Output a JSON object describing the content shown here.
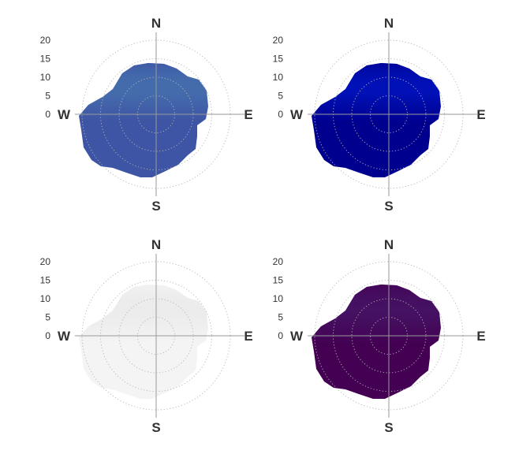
{
  "chart_data": [
    {
      "type": "heatmap",
      "projection": "polar",
      "palette": "spectral",
      "colors": [
        "#3e54a4",
        "#4f97bb",
        "#9dd4a6",
        "#f8f7b9",
        "#fdbf6f",
        "#f4724a",
        "#cf3a4b",
        "#8b0a4a"
      ],
      "radial_ticks": [
        0,
        5,
        10,
        15,
        20
      ],
      "rmax": 24,
      "compass_labels": [
        "N",
        "E",
        "S",
        "W"
      ],
      "grid": true
    },
    {
      "type": "heatmap",
      "projection": "polar",
      "palette": "jet",
      "colors": [
        "#00008f",
        "#0030ff",
        "#00b4ff",
        "#40ffbf",
        "#c0ff40",
        "#ffc000",
        "#ff3000",
        "#9a0000"
      ],
      "radial_ticks": [
        0,
        5,
        10,
        15,
        20
      ],
      "rmax": 24,
      "compass_labels": [
        "N",
        "E",
        "S",
        "W"
      ],
      "grid": true
    },
    {
      "type": "heatmap",
      "projection": "polar",
      "palette": "greyscale",
      "colors": [
        "#f4f4f4",
        "#dcdcdc",
        "#bdbdbd",
        "#969696",
        "#6e6e6e",
        "#4a4a4a",
        "#2a2a2a",
        "#141414"
      ],
      "radial_ticks": [
        0,
        5,
        10,
        15,
        20
      ],
      "rmax": 24,
      "compass_labels": [
        "N",
        "E",
        "S",
        "W"
      ],
      "grid": true
    },
    {
      "type": "heatmap",
      "projection": "polar",
      "palette": "viridis",
      "colors": [
        "#440154",
        "#472d7b",
        "#3b528b",
        "#2c728e",
        "#21918c",
        "#28ae80",
        "#5ec962",
        "#d8e219",
        "#fde725"
      ],
      "radial_ticks": [
        0,
        5,
        10,
        15,
        20
      ],
      "rmax": 24,
      "compass_labels": [
        "N",
        "E",
        "S",
        "W"
      ],
      "grid": true
    }
  ]
}
